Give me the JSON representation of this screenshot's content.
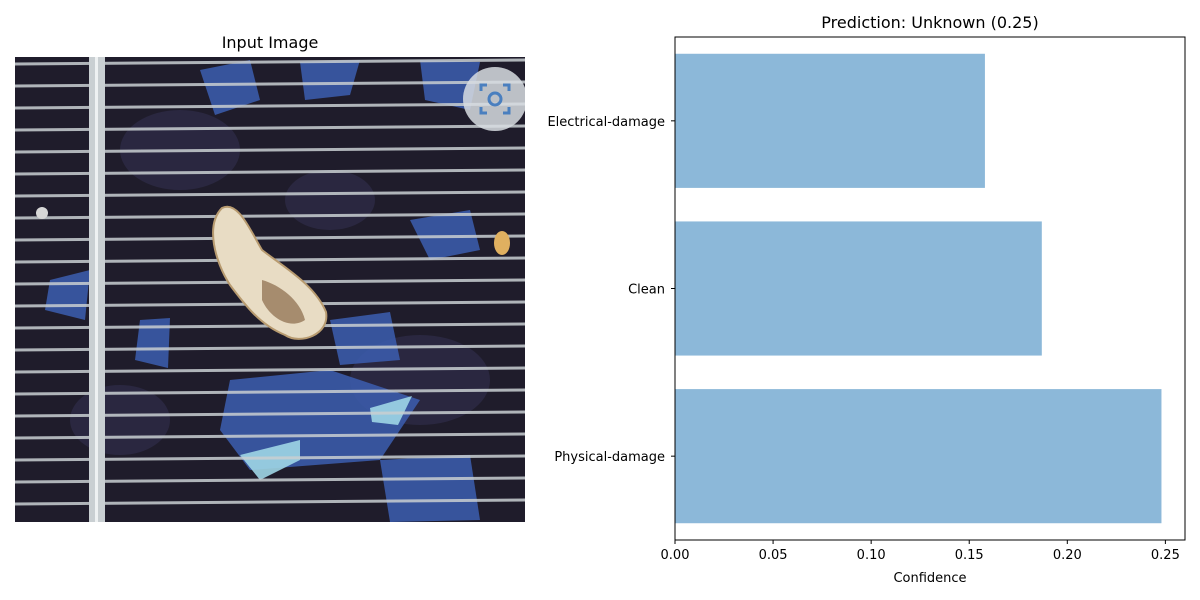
{
  "figure": {
    "left_panel": {
      "title": "Input Image"
    },
    "right_panel": {
      "title": "Prediction: Unknown (0.25)"
    }
  },
  "chart_data": {
    "type": "bar",
    "orientation": "horizontal",
    "title": "Prediction: Unknown (0.25)",
    "xlabel": "Confidence",
    "ylabel": "",
    "categories": [
      "Physical-damage",
      "Clean",
      "Electrical-damage"
    ],
    "values": [
      0.248,
      0.187,
      0.158
    ],
    "xlim": [
      0,
      0.26
    ],
    "xticks": [
      0,
      0.05,
      0.1,
      0.15,
      0.2,
      0.25
    ],
    "xtick_labels": [
      "0.00",
      "0.05",
      "0.10",
      "0.15",
      "0.20",
      "0.25"
    ],
    "bar_color": "#8cb8d9",
    "grid": false,
    "legend": "none"
  },
  "image_panel": {
    "description_icon": "focus-scan-icon",
    "colors": {
      "cell_dark": "#1f1c2b",
      "busbar": "#c9cfd2",
      "blue_patch": "#3c5eb0",
      "debris": "#e8dcc4"
    }
  }
}
